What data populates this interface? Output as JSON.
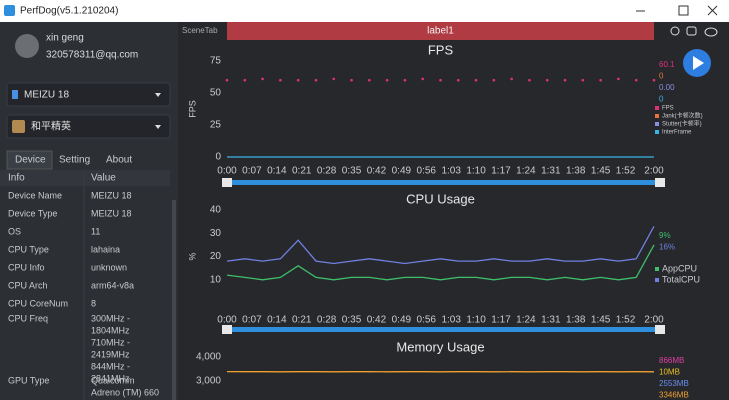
{
  "window": {
    "title": "PerfDog(v5.1.210204)"
  },
  "user": {
    "name": "xin geng",
    "email": "320578311@qq.com"
  },
  "device": "MEIZU 18",
  "app": "和平精英",
  "tabs": [
    "Device",
    "Setting",
    "About"
  ],
  "info_table": {
    "header": [
      "Info",
      "Value"
    ],
    "rows": [
      [
        "Device Name",
        [
          "MEIZU 18"
        ]
      ],
      [
        "Device Type",
        [
          "MEIZU 18"
        ]
      ],
      [
        "OS",
        [
          "11"
        ]
      ],
      [
        "CPU Type",
        [
          "lahaina"
        ]
      ],
      [
        "CPU Info",
        [
          "unknown"
        ]
      ],
      [
        "CPU Arch",
        [
          "arm64-v8a"
        ]
      ],
      [
        "CPU CoreNum",
        [
          "8"
        ]
      ],
      [
        "CPU Freq",
        [
          "300MHz -",
          "1804MHz",
          "710MHz -",
          "2419MHz",
          "844MHz -",
          "2841MHz"
        ]
      ],
      [
        "GPU Type",
        [
          "Qualcomm",
          "Adreno (TM) 660"
        ]
      ]
    ]
  },
  "scene_tab": "SceneTab",
  "label": "label1",
  "chart_data": [
    {
      "type": "line",
      "title": "FPS",
      "y_label": "FPS",
      "xlim": [
        0,
        120
      ],
      "ylim": [
        0,
        75
      ],
      "yticks": [
        0,
        25,
        50,
        75
      ],
      "xticks": [
        {
          "value": 0,
          "label": "0:00"
        },
        {
          "value": 7,
          "label": "0:07"
        },
        {
          "value": 14,
          "label": "0:14"
        },
        {
          "value": 21,
          "label": "0:21"
        },
        {
          "value": 28,
          "label": "0:28"
        },
        {
          "value": 35,
          "label": "0:35"
        },
        {
          "value": 42,
          "label": "0:42"
        },
        {
          "value": 49,
          "label": "0:49"
        },
        {
          "value": 56,
          "label": "0:56"
        },
        {
          "value": 63,
          "label": "1:03"
        },
        {
          "value": 70,
          "label": "1:10"
        },
        {
          "value": 77,
          "label": "1:17"
        },
        {
          "value": 84,
          "label": "1:24"
        },
        {
          "value": 91,
          "label": "1:31"
        },
        {
          "value": 98,
          "label": "1:38"
        },
        {
          "value": 105,
          "label": "1:45"
        },
        {
          "value": 112,
          "label": "1:52"
        },
        {
          "value": 120,
          "label": "2:00"
        }
      ],
      "x": [
        0,
        5,
        10,
        15,
        20,
        25,
        30,
        35,
        40,
        45,
        50,
        55,
        60,
        65,
        70,
        75,
        80,
        85,
        90,
        95,
        100,
        105,
        110,
        115,
        120
      ],
      "series": [
        {
          "name": "FPS",
          "color": "#e0307a",
          "style": "dots",
          "legend_value": "60.1",
          "values": [
            60,
            60,
            61,
            60,
            60,
            60,
            61,
            60,
            60,
            60,
            60,
            61,
            60,
            60,
            60,
            60,
            61,
            60,
            60,
            60,
            60,
            60,
            61,
            60,
            60
          ]
        },
        {
          "name": "Jank(卡顿次数)",
          "color": "#e8743a",
          "legend_value": "0"
        },
        {
          "name": "Stutter(卡顿率)",
          "color": "#8a8fe0",
          "legend_value": "0.00"
        },
        {
          "name": "InterFrame",
          "color": "#3bb3e6",
          "style": "line",
          "legend_value": "0",
          "values": [
            0,
            0,
            0,
            0,
            0,
            0,
            0,
            0,
            0,
            0,
            0,
            0,
            0,
            0,
            0,
            0,
            0,
            0,
            0,
            0,
            0,
            0,
            0,
            0,
            0
          ]
        }
      ]
    },
    {
      "type": "line",
      "title": "CPU Usage",
      "y_label": "%",
      "xlim": [
        0,
        120
      ],
      "ylim": [
        0,
        40
      ],
      "yticks": [
        10,
        20,
        30,
        40
      ],
      "xticks": [
        {
          "value": 0,
          "label": "0:00"
        },
        {
          "value": 7,
          "label": "0:07"
        },
        {
          "value": 14,
          "label": "0:14"
        },
        {
          "value": 21,
          "label": "0:21"
        },
        {
          "value": 28,
          "label": "0:28"
        },
        {
          "value": 35,
          "label": "0:35"
        },
        {
          "value": 42,
          "label": "0:42"
        },
        {
          "value": 49,
          "label": "0:49"
        },
        {
          "value": 56,
          "label": "0:56"
        },
        {
          "value": 63,
          "label": "1:03"
        },
        {
          "value": 70,
          "label": "1:10"
        },
        {
          "value": 77,
          "label": "1:17"
        },
        {
          "value": 84,
          "label": "1:24"
        },
        {
          "value": 91,
          "label": "1:31"
        },
        {
          "value": 98,
          "label": "1:38"
        },
        {
          "value": 105,
          "label": "1:45"
        },
        {
          "value": 112,
          "label": "1:52"
        },
        {
          "value": 120,
          "label": "2:00"
        }
      ],
      "x": [
        0,
        5,
        10,
        15,
        20,
        25,
        30,
        35,
        40,
        45,
        50,
        55,
        60,
        65,
        70,
        75,
        80,
        85,
        90,
        95,
        100,
        105,
        110,
        115,
        120
      ],
      "series": [
        {
          "name": "AppCPU",
          "color": "#3fbf6a",
          "style": "line",
          "legend_value": "9%",
          "values": [
            12,
            11,
            10,
            11,
            16,
            11,
            10,
            11,
            11,
            10,
            11,
            11,
            10,
            11,
            11,
            10,
            11,
            11,
            10,
            11,
            10,
            11,
            10,
            11,
            25
          ]
        },
        {
          "name": "TotalCPU",
          "color": "#7080e0",
          "style": "line",
          "legend_value": "16%",
          "values": [
            18,
            19,
            18,
            19,
            27,
            18,
            17,
            18,
            19,
            18,
            17,
            18,
            19,
            18,
            18,
            19,
            18,
            18,
            19,
            18,
            18,
            19,
            18,
            19,
            33
          ]
        }
      ]
    },
    {
      "type": "line",
      "title": "Memory Usage",
      "xlim": [
        0,
        120
      ],
      "ylim": [
        2400,
        4200
      ],
      "yticks": [
        {
          "value": 3000,
          "label": "3,000"
        },
        {
          "value": 4000,
          "label": "4,000"
        }
      ],
      "x": [
        0,
        5,
        10,
        15,
        20,
        25,
        30,
        35,
        40,
        45,
        50,
        55,
        60,
        65,
        70,
        75,
        80,
        85,
        90,
        95,
        100,
        105,
        110,
        115,
        120
      ],
      "series": [
        {
          "color": "#e040a0",
          "legend_value": "866MB"
        },
        {
          "color": "#e8c020",
          "legend_value": "10MB"
        },
        {
          "color": "#6a8ef0",
          "legend_value": "2553MB"
        },
        {
          "color": "#f0a030",
          "style": "line",
          "legend_value": "3346MB",
          "values": [
            3380,
            3375,
            3375,
            3370,
            3375,
            3375,
            3370,
            3375,
            3375,
            3370,
            3375,
            3375,
            3370,
            3375,
            3375,
            3370,
            3375,
            3370,
            3375,
            3375,
            3370,
            3375,
            3370,
            3375,
            3370
          ]
        }
      ]
    }
  ]
}
